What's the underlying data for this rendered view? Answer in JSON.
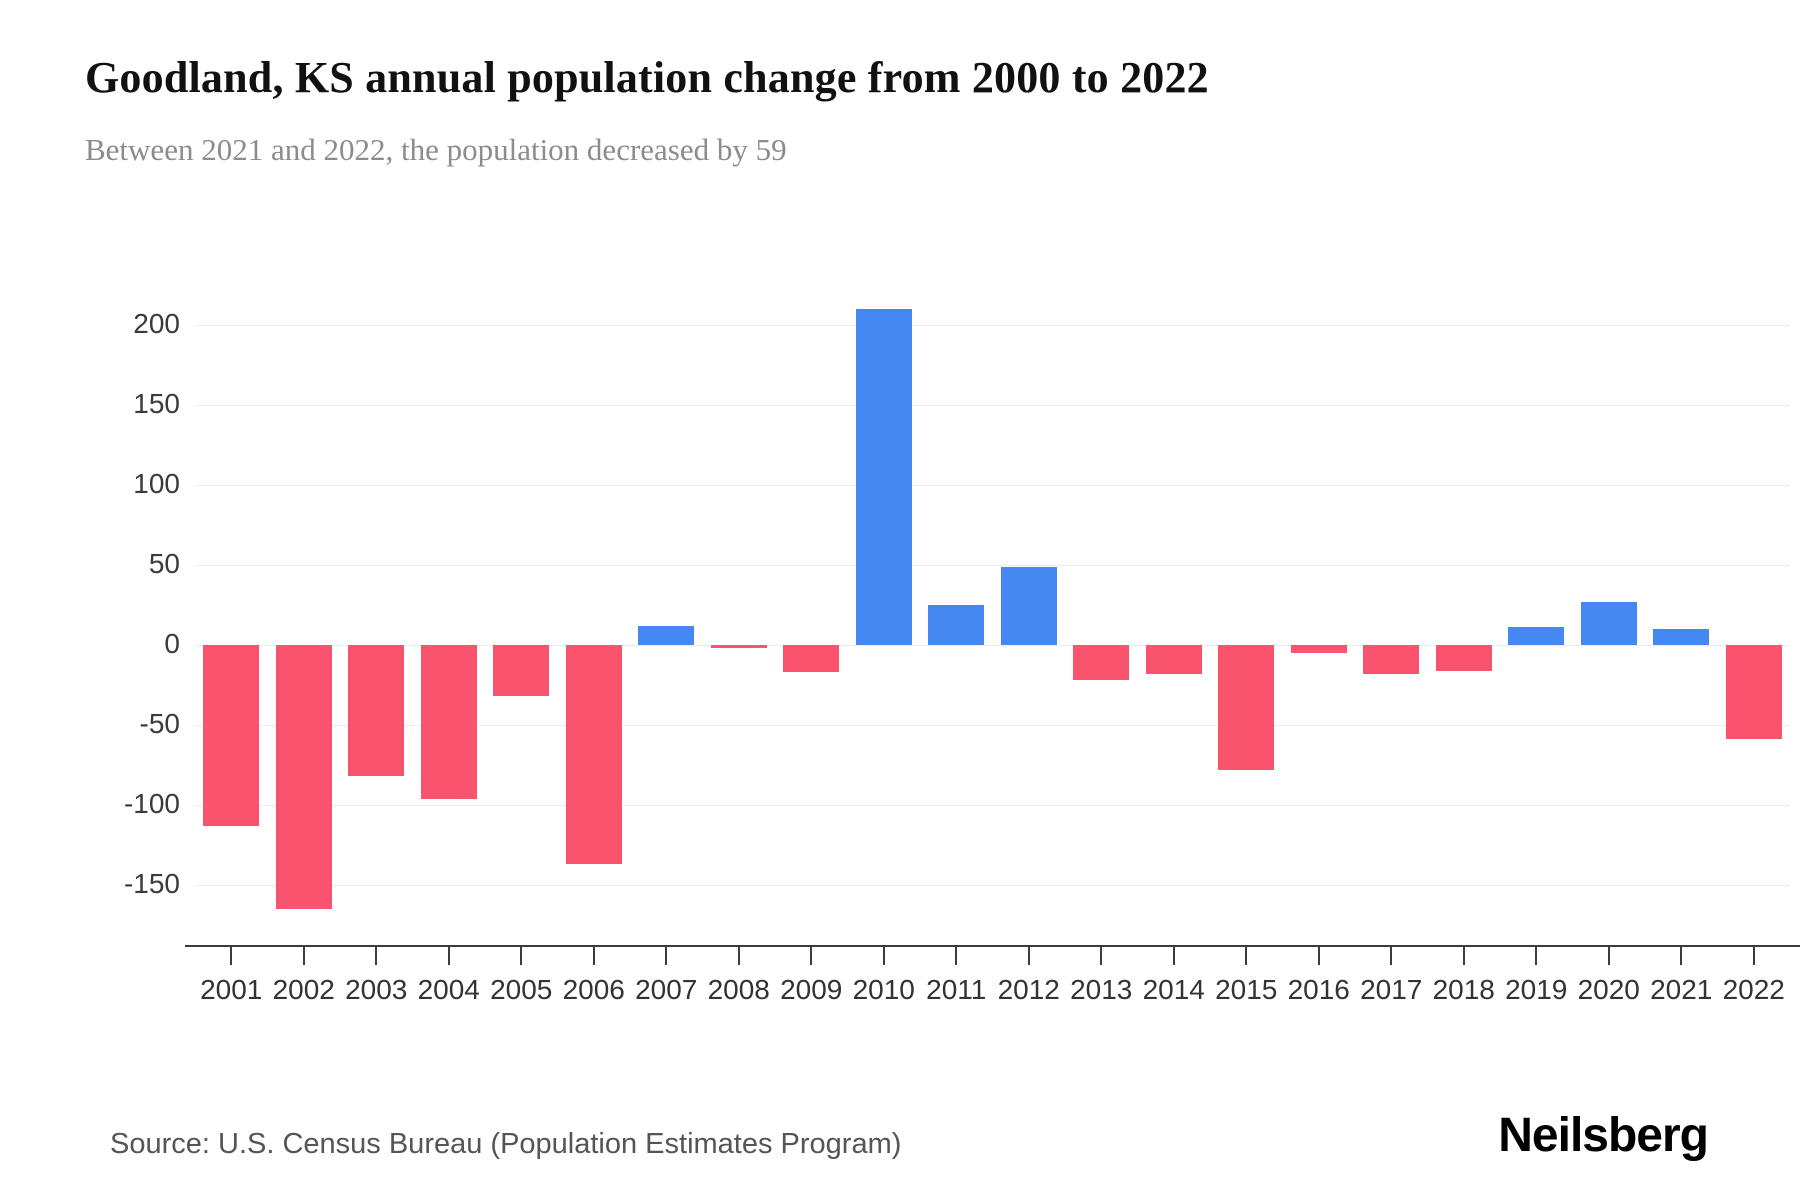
{
  "page": {
    "title": "Goodland, KS annual population change from 2000 to 2022",
    "subtitle": "Between 2021 and 2022, the population decreased by 59",
    "source": "Source: U.S. Census Bureau (Population Estimates Program)",
    "brand": "Neilsberg"
  },
  "colors": {
    "positive": "#4688f1",
    "negative": "#f9536e",
    "gridline": "#ececec",
    "axis": "#3c3c3c"
  },
  "chart_data": {
    "type": "bar",
    "title": "Goodland, KS annual population change from 2000 to 2022",
    "subtitle": "Between 2021 and 2022, the population decreased by 59",
    "xlabel": "",
    "ylabel": "",
    "categories": [
      "2001",
      "2002",
      "2003",
      "2004",
      "2005",
      "2006",
      "2007",
      "2008",
      "2009",
      "2010",
      "2011",
      "2012",
      "2013",
      "2014",
      "2015",
      "2016",
      "2017",
      "2018",
      "2019",
      "2020",
      "2021",
      "2022"
    ],
    "values": [
      -113,
      -165,
      -82,
      -96,
      -32,
      -137,
      12,
      -2,
      -17,
      210,
      25,
      49,
      -22,
      -18,
      -78,
      -5,
      -18,
      -16,
      11,
      27,
      10,
      -59
    ],
    "yticks": [
      200,
      150,
      100,
      50,
      0,
      -50,
      -100,
      -150
    ],
    "ylim": [
      -190,
      220
    ],
    "grid": true,
    "legend": false,
    "positive_color": "#4688f1",
    "negative_color": "#f9536e"
  }
}
